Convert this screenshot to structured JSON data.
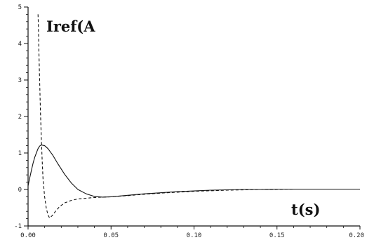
{
  "chart_data": {
    "type": "line",
    "ylabel": "Iref(A",
    "xlabel": "t(s)",
    "xlim": [
      0,
      0.2
    ],
    "ylim": [
      -1,
      5
    ],
    "xticks": [
      {
        "value": 0.0,
        "label": "0.00"
      },
      {
        "value": 0.05,
        "label": "0.05"
      },
      {
        "value": 0.1,
        "label": "0.10"
      },
      {
        "value": 0.15,
        "label": "0.15"
      },
      {
        "value": 0.2,
        "label": "0.20"
      }
    ],
    "yticks": [
      {
        "value": -1,
        "label": "-1"
      },
      {
        "value": 0,
        "label": "0"
      },
      {
        "value": 1,
        "label": "1"
      },
      {
        "value": 2,
        "label": "2"
      },
      {
        "value": 3,
        "label": "3"
      },
      {
        "value": 4,
        "label": "4"
      },
      {
        "value": 5,
        "label": "5"
      }
    ],
    "grid": false,
    "series": [
      {
        "style": "solid",
        "x": [
          0.0,
          0.001,
          0.002,
          0.003,
          0.004,
          0.005,
          0.006,
          0.007,
          0.008,
          0.01,
          0.012,
          0.015,
          0.018,
          0.022,
          0.026,
          0.03,
          0.035,
          0.04,
          0.045,
          0.05,
          0.06,
          0.07,
          0.08,
          0.09,
          0.1,
          0.11,
          0.12,
          0.13,
          0.14,
          0.15,
          0.16,
          0.17,
          0.18,
          0.19,
          0.2
        ],
        "y": [
          0.1,
          0.32,
          0.52,
          0.72,
          0.88,
          1.0,
          1.12,
          1.19,
          1.22,
          1.2,
          1.12,
          0.93,
          0.7,
          0.42,
          0.18,
          0.0,
          -0.12,
          -0.19,
          -0.21,
          -0.2,
          -0.16,
          -0.12,
          -0.09,
          -0.06,
          -0.04,
          -0.02,
          -0.01,
          0.0,
          0.0,
          0.01,
          0.01,
          0.01,
          0.01,
          0.01,
          0.01
        ]
      },
      {
        "style": "dashed",
        "x": [
          0.006,
          0.0062,
          0.0065,
          0.007,
          0.0075,
          0.008,
          0.0085,
          0.009,
          0.01,
          0.011,
          0.012,
          0.013,
          0.0145,
          0.0165,
          0.019,
          0.022,
          0.026,
          0.03,
          0.035,
          0.04,
          0.045,
          0.05,
          0.06,
          0.07,
          0.08,
          0.1,
          0.12,
          0.14,
          0.16,
          0.18,
          0.2
        ],
        "y": [
          4.8,
          4.5,
          3.8,
          2.9,
          2.1,
          1.4,
          0.8,
          0.3,
          -0.2,
          -0.52,
          -0.7,
          -0.78,
          -0.72,
          -0.6,
          -0.47,
          -0.37,
          -0.3,
          -0.26,
          -0.24,
          -0.22,
          -0.21,
          -0.2,
          -0.17,
          -0.13,
          -0.1,
          -0.05,
          -0.02,
          0.0,
          0.01,
          0.01,
          0.01
        ]
      }
    ]
  }
}
